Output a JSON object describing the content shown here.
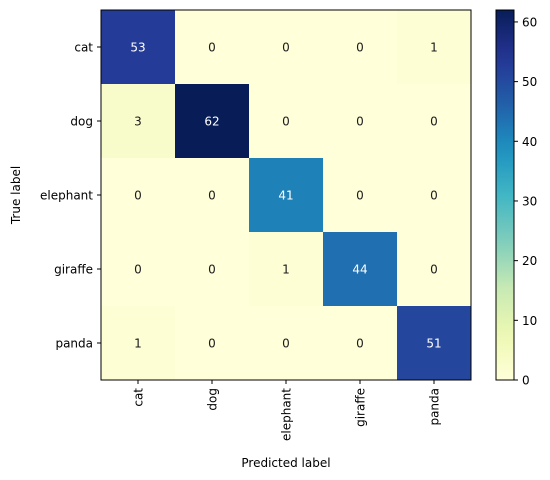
{
  "chart_data": {
    "type": "heatmap",
    "title": "",
    "xlabel": "Predicted label",
    "ylabel": "True label",
    "x_categories": [
      "cat",
      "dog",
      "elephant",
      "giraffe",
      "panda"
    ],
    "y_categories": [
      "cat",
      "dog",
      "elephant",
      "giraffe",
      "panda"
    ],
    "values": [
      [
        53,
        0,
        0,
        0,
        1
      ],
      [
        3,
        62,
        0,
        0,
        0
      ],
      [
        0,
        0,
        41,
        0,
        0
      ],
      [
        0,
        0,
        1,
        44,
        0
      ],
      [
        1,
        0,
        0,
        0,
        51
      ]
    ],
    "colormap": "YlGnBu",
    "colorbar": {
      "vmin": 0,
      "vmax": 62,
      "ticks": [
        "0",
        "10",
        "20",
        "30",
        "40",
        "50",
        "60"
      ]
    },
    "grid": false
  }
}
